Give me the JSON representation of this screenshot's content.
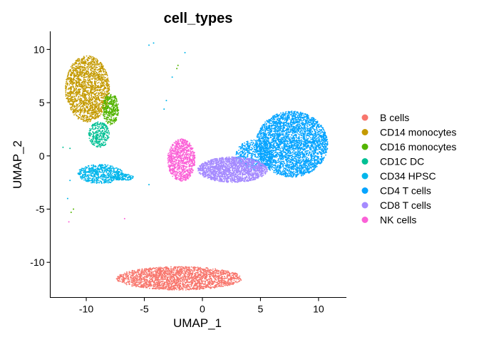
{
  "chart_data": {
    "type": "scatter",
    "title": "cell_types",
    "xlabel": "UMAP_1",
    "ylabel": "UMAP_2",
    "xlim": [
      -13.1,
      12.4
    ],
    "ylim": [
      -13.3,
      11.7
    ],
    "x_ticks": [
      -10,
      -5,
      0,
      5,
      10
    ],
    "y_ticks": [
      -10,
      -5,
      0,
      5,
      10
    ],
    "x_tick_labels": [
      "-10",
      "-5",
      "0",
      "5",
      "10"
    ],
    "y_tick_labels": [
      "-10",
      "-5",
      "0",
      "5",
      "10"
    ],
    "grid": false,
    "legend_position": "right",
    "series": [
      {
        "name": "B cells",
        "color": "#F8766D",
        "clusters": [
          {
            "cx": -2.0,
            "cy": -11.5,
            "rx": 5.4,
            "ry": 1.1,
            "n": 2200
          }
        ]
      },
      {
        "name": "CD14 monocytes",
        "color": "#C49A00",
        "clusters": [
          {
            "cx": -9.9,
            "cy": 6.3,
            "rx": 1.9,
            "ry": 3.1,
            "n": 1800
          }
        ]
      },
      {
        "name": "CD16 monocytes",
        "color": "#53B400",
        "clusters": [
          {
            "cx": -7.9,
            "cy": 4.4,
            "rx": 0.7,
            "ry": 1.5,
            "n": 350
          }
        ],
        "outliers": [
          [
            -11.3,
            -5.3
          ],
          [
            -11.1,
            -5.0
          ],
          [
            -2.2,
            8.2
          ],
          [
            -2.1,
            8.5
          ]
        ]
      },
      {
        "name": "CD1C DC",
        "color": "#00C094",
        "clusters": [
          {
            "cx": -8.9,
            "cy": 2.0,
            "rx": 0.9,
            "ry": 1.2,
            "n": 300
          }
        ],
        "outliers": [
          [
            -12.0,
            0.8
          ],
          [
            -11.4,
            0.7
          ]
        ]
      },
      {
        "name": "CD34 HPSC",
        "color": "#00B6EB",
        "clusters": [
          {
            "cx": -8.8,
            "cy": -1.7,
            "rx": 2.0,
            "ry": 0.9,
            "n": 600
          },
          {
            "cx": -6.8,
            "cy": -2.0,
            "rx": 0.9,
            "ry": 0.3,
            "n": 120
          }
        ],
        "outliers": [
          [
            -11.6,
            -4.0
          ],
          [
            -2.6,
            7.4
          ],
          [
            -4.6,
            10.4
          ],
          [
            -4.2,
            10.6
          ],
          [
            -1.5,
            9.7
          ],
          [
            -3.1,
            5.2
          ],
          [
            -3.3,
            4.4
          ],
          [
            -4.6,
            -2.7
          ],
          [
            -11.4,
            -2.3
          ]
        ]
      },
      {
        "name": "CD4 T cells",
        "color": "#06A4FF",
        "clusters": [
          {
            "cx": 7.7,
            "cy": 1.1,
            "rx": 3.1,
            "ry": 3.1,
            "n": 3500
          },
          {
            "cx": 4.5,
            "cy": 0.1,
            "rx": 1.6,
            "ry": 1.4,
            "n": 500
          }
        ]
      },
      {
        "name": "CD8 T cells",
        "color": "#A58AFF",
        "clusters": [
          {
            "cx": 2.6,
            "cy": -1.3,
            "rx": 3.0,
            "ry": 1.2,
            "n": 1800
          }
        ]
      },
      {
        "name": "NK cells",
        "color": "#FB61D7",
        "clusters": [
          {
            "cx": -1.8,
            "cy": -0.4,
            "rx": 1.2,
            "ry": 2.0,
            "n": 900
          }
        ],
        "outliers": [
          [
            -6.7,
            -5.9
          ],
          [
            -11.5,
            -6.2
          ]
        ]
      }
    ]
  }
}
